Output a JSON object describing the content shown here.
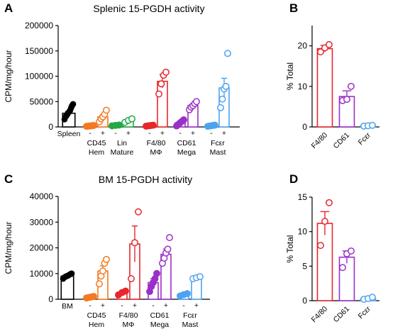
{
  "panels": {
    "A": "A",
    "B": "B",
    "C": "C",
    "D": "D"
  },
  "chart_data": [
    {
      "id": "A",
      "type": "bar",
      "title": "Splenic 15-PGDH activity",
      "ylabel": "CPM/mg/hour",
      "ylim": [
        0,
        200000
      ],
      "yticks": [
        "0",
        "50000",
        "100000",
        "150000",
        "200000"
      ],
      "ytick_values": [
        0,
        50000,
        100000,
        150000,
        200000
      ],
      "sign_minus": "-",
      "sign_plus": "+",
      "groups": [
        {
          "label1": "Spleen",
          "label2": ""
        },
        {
          "label1": "CD45",
          "label2": "Hem"
        },
        {
          "label1": "Lin",
          "label2": "Mature"
        },
        {
          "label1": "F4/80",
          "label2": "MΦ"
        },
        {
          "label1": "CD61",
          "label2": "Mega"
        },
        {
          "label1": "Fcεr",
          "label2": "Mast"
        }
      ],
      "bars": [
        {
          "group": 0,
          "sign": "",
          "color": "#000000",
          "filled": true,
          "mean": 27000,
          "sem": 3000,
          "points": [
            15000,
            20000,
            22000,
            25000,
            28000,
            30000,
            33000,
            38000,
            42000,
            45000
          ]
        },
        {
          "group": 1,
          "sign": "-",
          "color": "#f47920",
          "filled": true,
          "mean": 2000,
          "sem": 400,
          "points": [
            1200,
            1600,
            2000,
            2400,
            2800
          ]
        },
        {
          "group": 1,
          "sign": "+",
          "color": "#f47920",
          "filled": false,
          "mean": 20000,
          "sem": 4000,
          "points": [
            10000,
            16000,
            20000,
            25000,
            33000
          ]
        },
        {
          "group": 2,
          "sign": "-",
          "color": "#22a844",
          "filled": true,
          "mean": 3000,
          "sem": 400,
          "points": [
            2200,
            3000,
            3800
          ]
        },
        {
          "group": 2,
          "sign": "+",
          "color": "#22a844",
          "filled": false,
          "mean": 13000,
          "sem": 2000,
          "points": [
            9000,
            13000,
            16000
          ]
        },
        {
          "group": 3,
          "sign": "-",
          "color": "#e8262b",
          "filled": true,
          "mean": 2500,
          "sem": 400,
          "points": [
            1500,
            2200,
            2800,
            3400
          ]
        },
        {
          "group": 3,
          "sign": "+",
          "color": "#e8262b",
          "filled": false,
          "mean": 90000,
          "sem": 13000,
          "points": [
            65000,
            85000,
            102000,
            108000
          ]
        },
        {
          "group": 4,
          "sign": "-",
          "color": "#9b30c8",
          "filled": true,
          "mean": 8000,
          "sem": 2000,
          "points": [
            2000,
            5000,
            8000,
            11000,
            14000
          ]
        },
        {
          "group": 4,
          "sign": "+",
          "color": "#9b30c8",
          "filled": false,
          "mean": 42000,
          "sem": 3000,
          "points": [
            34000,
            39000,
            42000,
            46000,
            50000
          ]
        },
        {
          "group": 5,
          "sign": "-",
          "color": "#4da3f0",
          "filled": true,
          "mean": 2500,
          "sem": 400,
          "points": [
            1200,
            2000,
            2800,
            3500
          ]
        },
        {
          "group": 5,
          "sign": "+",
          "color": "#4da3f0",
          "filled": false,
          "mean": 77000,
          "sem": 19000,
          "points": [
            38000,
            55000,
            75000,
            80000,
            145000
          ]
        }
      ]
    },
    {
      "id": "B",
      "type": "bar",
      "ylabel": "% Total",
      "ylim": [
        0,
        25
      ],
      "yticks": [
        "0",
        "10",
        "20"
      ],
      "ytick_values": [
        0,
        10,
        20
      ],
      "bars": [
        {
          "label": "F4/80",
          "color": "#e8262b",
          "mean": 19.3,
          "sem": 0.8,
          "points": [
            18.5,
            19.5,
            20.3
          ]
        },
        {
          "label": "CD61",
          "color": "#9b30c8",
          "mean": 7.5,
          "sem": 1.4,
          "points": [
            6.5,
            6.8,
            10.0
          ]
        },
        {
          "label": "Fcεr",
          "color": "#4da3f0",
          "mean": 0.3,
          "sem": 0.1,
          "points": [
            0.2,
            0.3,
            0.4
          ]
        }
      ]
    },
    {
      "id": "C",
      "type": "bar",
      "title": "BM 15-PGDH activity",
      "ylabel": "CPM/mg/hour",
      "ylim": [
        0,
        40000
      ],
      "yticks": [
        "0",
        "10000",
        "20000",
        "30000",
        "40000"
      ],
      "ytick_values": [
        0,
        10000,
        20000,
        30000,
        40000
      ],
      "sign_minus": "-",
      "sign_plus": "+",
      "groups": [
        {
          "label1": "BM",
          "label2": ""
        },
        {
          "label1": "CD45",
          "label2": "Hem"
        },
        {
          "label1": "F4/80",
          "label2": "MΦ"
        },
        {
          "label1": "CD61",
          "label2": "Mega"
        },
        {
          "label1": "Fcεr",
          "label2": "Mast"
        }
      ],
      "bars": [
        {
          "group": 0,
          "sign": "",
          "color": "#000000",
          "filled": true,
          "mean": 9000,
          "sem": 300,
          "points": [
            8000,
            8500,
            8800,
            9000,
            9200,
            9500,
            9800,
            10000
          ]
        },
        {
          "group": 1,
          "sign": "-",
          "color": "#f47920",
          "filled": true,
          "mean": 800,
          "sem": 200,
          "points": [
            500,
            700,
            900,
            1100
          ]
        },
        {
          "group": 1,
          "sign": "+",
          "color": "#f47920",
          "filled": false,
          "mean": 11000,
          "sem": 2000,
          "points": [
            6000,
            9000,
            11000,
            14000,
            15500
          ]
        },
        {
          "group": 2,
          "sign": "-",
          "color": "#e8262b",
          "filled": true,
          "mean": 2500,
          "sem": 500,
          "points": [
            1700,
            2600,
            3200
          ]
        },
        {
          "group": 2,
          "sign": "+",
          "color": "#e8262b",
          "filled": false,
          "mean": 21500,
          "sem": 7000,
          "points": [
            8000,
            22000,
            34000
          ]
        },
        {
          "group": 3,
          "sign": "-",
          "color": "#9b30c8",
          "filled": true,
          "mean": 6500,
          "sem": 1500,
          "points": [
            3000,
            5000,
            6500,
            8000,
            10000
          ]
        },
        {
          "group": 3,
          "sign": "+",
          "color": "#9b30c8",
          "filled": false,
          "mean": 17500,
          "sem": 2000,
          "points": [
            14000,
            16000,
            18000,
            19500,
            24000
          ]
        },
        {
          "group": 4,
          "sign": "-",
          "color": "#4da3f0",
          "filled": true,
          "mean": 1800,
          "sem": 200,
          "points": [
            1300,
            1800,
            2200
          ]
        },
        {
          "group": 4,
          "sign": "+",
          "color": "#4da3f0",
          "filled": false,
          "mean": 8500,
          "sem": 300,
          "points": [
            8000,
            8400,
            8800
          ]
        }
      ]
    },
    {
      "id": "D",
      "type": "bar",
      "ylabel": "% Total",
      "ylim": [
        0,
        15
      ],
      "yticks": [
        "0",
        "5",
        "10",
        "15"
      ],
      "ytick_values": [
        0,
        5,
        10,
        15
      ],
      "bars": [
        {
          "label": "F4/80",
          "color": "#e8262b",
          "mean": 11.2,
          "sem": 1.7,
          "points": [
            8.0,
            11.5,
            14.2
          ]
        },
        {
          "label": "CD61",
          "color": "#9b30c8",
          "mean": 6.3,
          "sem": 0.9,
          "points": [
            4.8,
            6.8,
            7.2
          ]
        },
        {
          "label": "Fcεr",
          "color": "#4da3f0",
          "mean": 0.3,
          "sem": 0.1,
          "points": [
            0.2,
            0.3,
            0.5
          ]
        }
      ]
    }
  ]
}
